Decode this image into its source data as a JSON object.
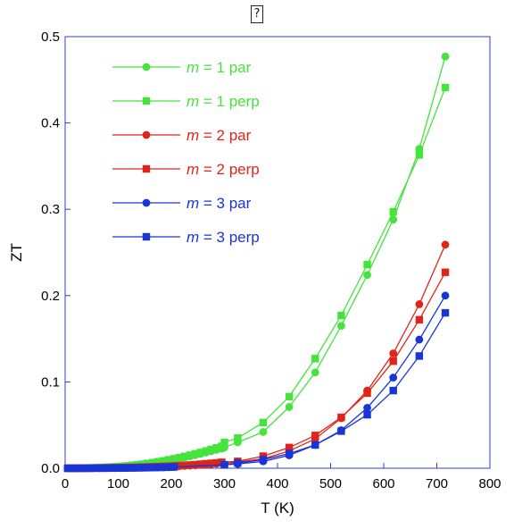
{
  "glyph": "?",
  "chart_data": {
    "type": "line",
    "title": "",
    "xlabel": "T (K)",
    "ylabel": "ZT",
    "xlim": [
      0,
      800
    ],
    "ylim": [
      0,
      0.5
    ],
    "xticks": [
      0,
      100,
      200,
      300,
      400,
      500,
      600,
      700,
      800
    ],
    "yticks": [
      "0.0",
      "0.1",
      "0.2",
      "0.3",
      "0.4",
      "0.5"
    ],
    "legend_position": "top-left",
    "grid": false,
    "series": [
      {
        "name": "m = 1 par",
        "legend_italic": "m",
        "legend_rest": " = 1 par",
        "color": "#44e43c",
        "marker": "circle",
        "points": [
          [
            5,
            0
          ],
          [
            15,
            0
          ],
          [
            25,
            0.0001
          ],
          [
            35,
            0.0002
          ],
          [
            45,
            0.0003
          ],
          [
            55,
            0.0005
          ],
          [
            65,
            0.0007
          ],
          [
            75,
            0.001
          ],
          [
            85,
            0.0013
          ],
          [
            95,
            0.0016
          ],
          [
            105,
            0.002
          ],
          [
            115,
            0.0025
          ],
          [
            125,
            0.003
          ],
          [
            135,
            0.0036
          ],
          [
            145,
            0.0042
          ],
          [
            155,
            0.005
          ],
          [
            165,
            0.0058
          ],
          [
            175,
            0.0067
          ],
          [
            185,
            0.0077
          ],
          [
            195,
            0.0088
          ],
          [
            205,
            0.01
          ],
          [
            215,
            0.0112
          ],
          [
            225,
            0.0125
          ],
          [
            235,
            0.0138
          ],
          [
            245,
            0.0152
          ],
          [
            255,
            0.0167
          ],
          [
            265,
            0.0182
          ],
          [
            275,
            0.0198
          ],
          [
            285,
            0.0214
          ],
          [
            295,
            0.0228
          ],
          [
            300,
            0.024
          ],
          [
            325,
            0.03
          ],
          [
            373,
            0.042
          ],
          [
            422,
            0.071
          ],
          [
            471,
            0.111
          ],
          [
            520,
            0.165
          ],
          [
            569,
            0.224
          ],
          [
            618,
            0.288
          ],
          [
            667,
            0.37
          ],
          [
            716,
            0.477
          ]
        ]
      },
      {
        "name": "m = 1 perp",
        "legend_italic": "m",
        "legend_rest": " = 1 perp",
        "color": "#44e43c",
        "marker": "square",
        "points": [
          [
            5,
            0
          ],
          [
            15,
            0
          ],
          [
            25,
            0.0001
          ],
          [
            35,
            0.0002
          ],
          [
            45,
            0.0003
          ],
          [
            55,
            0.0005
          ],
          [
            65,
            0.0008
          ],
          [
            75,
            0.0011
          ],
          [
            85,
            0.0014
          ],
          [
            95,
            0.0018
          ],
          [
            105,
            0.0022
          ],
          [
            115,
            0.0027
          ],
          [
            125,
            0.0033
          ],
          [
            135,
            0.004
          ],
          [
            145,
            0.0047
          ],
          [
            155,
            0.0056
          ],
          [
            165,
            0.0065
          ],
          [
            175,
            0.0075
          ],
          [
            185,
            0.0086
          ],
          [
            195,
            0.0098
          ],
          [
            205,
            0.011
          ],
          [
            215,
            0.0123
          ],
          [
            225,
            0.0137
          ],
          [
            235,
            0.0152
          ],
          [
            245,
            0.0167
          ],
          [
            255,
            0.0183
          ],
          [
            265,
            0.02
          ],
          [
            275,
            0.0218
          ],
          [
            285,
            0.0236
          ],
          [
            295,
            0.0254
          ],
          [
            300,
            0.03
          ],
          [
            325,
            0.035
          ],
          [
            373,
            0.053
          ],
          [
            422,
            0.083
          ],
          [
            471,
            0.127
          ],
          [
            520,
            0.177
          ],
          [
            569,
            0.236
          ],
          [
            618,
            0.297
          ],
          [
            667,
            0.363
          ],
          [
            716,
            0.441
          ]
        ]
      },
      {
        "name": "m = 2 par",
        "legend_italic": "m",
        "legend_rest": " = 2 par",
        "color": "#e0241a",
        "marker": "circle",
        "points": [
          [
            5,
            0
          ],
          [
            15,
            0
          ],
          [
            25,
            0
          ],
          [
            35,
            0.0001
          ],
          [
            45,
            0.0001
          ],
          [
            55,
            0.0001
          ],
          [
            65,
            0.0002
          ],
          [
            75,
            0.0003
          ],
          [
            85,
            0.0004
          ],
          [
            95,
            0.0005
          ],
          [
            105,
            0.0006
          ],
          [
            115,
            0.0007
          ],
          [
            125,
            0.0008
          ],
          [
            135,
            0.0009
          ],
          [
            145,
            0.001
          ],
          [
            155,
            0.0012
          ],
          [
            165,
            0.0014
          ],
          [
            175,
            0.0016
          ],
          [
            185,
            0.0018
          ],
          [
            195,
            0.002
          ],
          [
            205,
            0.0022
          ],
          [
            215,
            0.0025
          ],
          [
            225,
            0.0028
          ],
          [
            235,
            0.0031
          ],
          [
            245,
            0.0035
          ],
          [
            255,
            0.0039
          ],
          [
            265,
            0.0043
          ],
          [
            275,
            0.0048
          ],
          [
            285,
            0.0053
          ],
          [
            295,
            0.0058
          ],
          [
            325,
            0.007
          ],
          [
            373,
            0.011
          ],
          [
            422,
            0.02
          ],
          [
            471,
            0.034
          ],
          [
            520,
            0.058
          ],
          [
            569,
            0.09
          ],
          [
            618,
            0.133
          ],
          [
            667,
            0.19
          ],
          [
            716,
            0.259
          ]
        ]
      },
      {
        "name": "m = 2 perp",
        "legend_italic": "m",
        "legend_rest": " = 2 perp",
        "color": "#e0241a",
        "marker": "square",
        "points": [
          [
            5,
            0
          ],
          [
            15,
            0
          ],
          [
            25,
            0
          ],
          [
            35,
            0.0001
          ],
          [
            45,
            0.0001
          ],
          [
            55,
            0.0002
          ],
          [
            65,
            0.0003
          ],
          [
            75,
            0.0004
          ],
          [
            85,
            0.0005
          ],
          [
            95,
            0.0006
          ],
          [
            105,
            0.0007
          ],
          [
            115,
            0.0008
          ],
          [
            125,
            0.001
          ],
          [
            135,
            0.0011
          ],
          [
            145,
            0.0013
          ],
          [
            155,
            0.0015
          ],
          [
            165,
            0.0017
          ],
          [
            175,
            0.0019
          ],
          [
            185,
            0.0021
          ],
          [
            195,
            0.0024
          ],
          [
            205,
            0.0027
          ],
          [
            215,
            0.003
          ],
          [
            225,
            0.0034
          ],
          [
            235,
            0.0038
          ],
          [
            245,
            0.0042
          ],
          [
            255,
            0.0047
          ],
          [
            265,
            0.0052
          ],
          [
            275,
            0.0057
          ],
          [
            285,
            0.0063
          ],
          [
            295,
            0.0069
          ],
          [
            325,
            0.008
          ],
          [
            373,
            0.014
          ],
          [
            422,
            0.024
          ],
          [
            471,
            0.038
          ],
          [
            520,
            0.059
          ],
          [
            569,
            0.087
          ],
          [
            618,
            0.124
          ],
          [
            667,
            0.172
          ],
          [
            716,
            0.227
          ]
        ]
      },
      {
        "name": "m = 3 par",
        "legend_italic": "m",
        "legend_rest": " = 3 par",
        "color": "#1a35d6",
        "marker": "circle",
        "points": [
          [
            5,
            0
          ],
          [
            15,
            0
          ],
          [
            25,
            0
          ],
          [
            35,
            0
          ],
          [
            45,
            0
          ],
          [
            55,
            0.0001
          ],
          [
            65,
            0.0001
          ],
          [
            75,
            0.0001
          ],
          [
            85,
            0.0002
          ],
          [
            95,
            0.0002
          ],
          [
            105,
            0.0003
          ],
          [
            115,
            0.0003
          ],
          [
            125,
            0.0004
          ],
          [
            135,
            0.0005
          ],
          [
            145,
            0.0006
          ],
          [
            155,
            0.0007
          ],
          [
            165,
            0.0008
          ],
          [
            175,
            0.0009
          ],
          [
            185,
            0.001
          ],
          [
            195,
            0.0012
          ],
          [
            205,
            0.0014
          ],
          [
            300,
            0.004
          ],
          [
            325,
            0.005
          ],
          [
            373,
            0.008
          ],
          [
            422,
            0.015
          ],
          [
            471,
            0.027
          ],
          [
            520,
            0.044
          ],
          [
            569,
            0.07
          ],
          [
            618,
            0.105
          ],
          [
            667,
            0.149
          ],
          [
            716,
            0.2
          ]
        ]
      },
      {
        "name": "m = 3 perp",
        "legend_italic": "m",
        "legend_rest": " = 3 perp",
        "color": "#1a35d6",
        "marker": "square",
        "points": [
          [
            5,
            0
          ],
          [
            15,
            0
          ],
          [
            25,
            0
          ],
          [
            35,
            0
          ],
          [
            45,
            0
          ],
          [
            55,
            0.0001
          ],
          [
            65,
            0.0001
          ],
          [
            75,
            0.0001
          ],
          [
            85,
            0.0002
          ],
          [
            95,
            0.0002
          ],
          [
            105,
            0.0003
          ],
          [
            115,
            0.0004
          ],
          [
            125,
            0.0004
          ],
          [
            135,
            0.0005
          ],
          [
            145,
            0.0006
          ],
          [
            155,
            0.0007
          ],
          [
            165,
            0.0008
          ],
          [
            175,
            0.001
          ],
          [
            185,
            0.0011
          ],
          [
            195,
            0.0013
          ],
          [
            205,
            0.0015
          ],
          [
            300,
            0.004
          ],
          [
            325,
            0.006
          ],
          [
            373,
            0.01
          ],
          [
            422,
            0.017
          ],
          [
            471,
            0.027
          ],
          [
            520,
            0.043
          ],
          [
            569,
            0.062
          ],
          [
            618,
            0.09
          ],
          [
            667,
            0.13
          ],
          [
            716,
            0.18
          ]
        ]
      }
    ]
  }
}
